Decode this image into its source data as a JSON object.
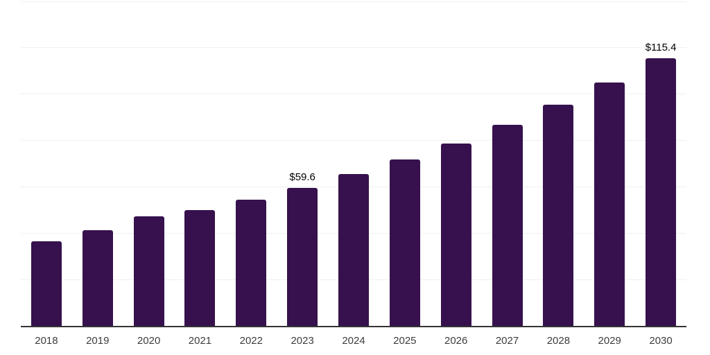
{
  "chart_data": {
    "type": "bar",
    "title": "",
    "xlabel": "",
    "ylabel": "",
    "categories": [
      "2018",
      "2019",
      "2020",
      "2021",
      "2022",
      "2023",
      "2024",
      "2025",
      "2026",
      "2027",
      "2028",
      "2029",
      "2030"
    ],
    "values": [
      36.6,
      41.4,
      47.3,
      50.0,
      54.4,
      59.6,
      65.4,
      71.7,
      78.8,
      86.8,
      95.5,
      105.0,
      115.4
    ],
    "data_labels": {
      "2023": "$59.6",
      "2030": "$115.4"
    },
    "ylim": [
      0,
      140
    ],
    "gridline_step": 20,
    "grid": true,
    "legend": "none",
    "colors": {
      "bar": "#36114d",
      "axis": "#333333",
      "gridline": "#f0f0f0",
      "tick_label": "#3d3d3d",
      "data_label": "#000000",
      "background": "#ffffff"
    }
  }
}
